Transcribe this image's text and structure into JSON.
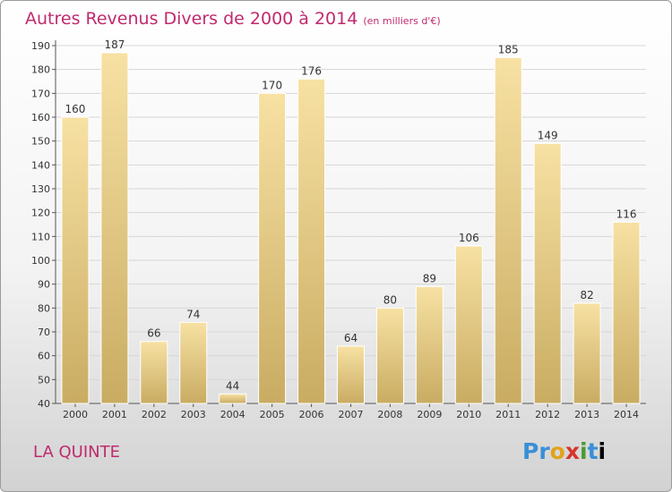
{
  "title": "Autres Revenus Divers de 2000 à 2014",
  "title_unit": "(en milliers d'€)",
  "city": "LA QUINTE",
  "logo": [
    "P",
    "r",
    "o",
    "x",
    "i",
    "t",
    "i"
  ],
  "colors": {
    "title": "#c02a6e",
    "bar_light": "#f7e1a3",
    "bar_dark": "#c9ac62",
    "bar_stroke": "#ffffff"
  },
  "chart_data": {
    "type": "bar",
    "title": "Autres Revenus Divers de 2000 à 2014",
    "categories": [
      "2000",
      "2001",
      "2002",
      "2003",
      "2004",
      "2005",
      "2006",
      "2007",
      "2008",
      "2009",
      "2010",
      "2011",
      "2012",
      "2013",
      "2014"
    ],
    "values": [
      160,
      187,
      66,
      74,
      44,
      170,
      176,
      64,
      80,
      89,
      106,
      185,
      149,
      82,
      116
    ],
    "ylim": [
      40,
      190
    ],
    "yticks": [
      40,
      50,
      60,
      70,
      80,
      90,
      100,
      110,
      120,
      130,
      140,
      150,
      160,
      170,
      180,
      190
    ],
    "grid": true,
    "data_labels": true
  }
}
